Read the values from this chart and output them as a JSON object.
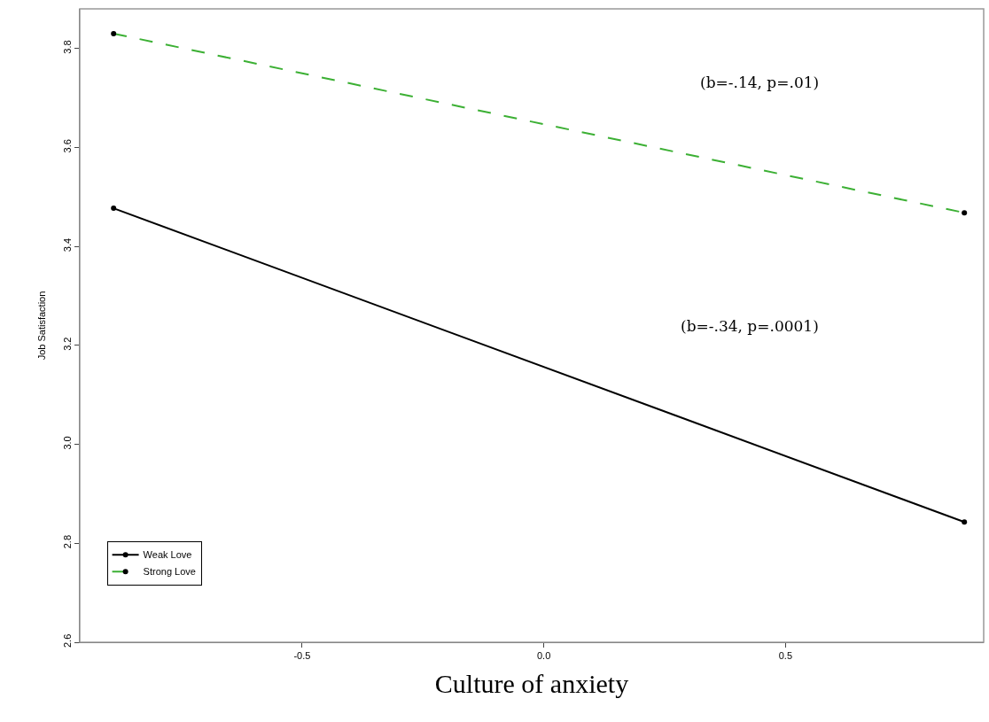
{
  "chart_data": {
    "type": "line",
    "xlabel": "Culture of anxiety",
    "ylabel": "Job Satisfaction",
    "x": [
      -0.89,
      0.87
    ],
    "series": [
      {
        "name": "Weak Love",
        "color": "#000000",
        "values": [
          3.477,
          2.843
        ],
        "line_style": "solid"
      },
      {
        "name": "Strong Love",
        "color": "#3cb034",
        "values": [
          3.83,
          3.468
        ],
        "line_style": "dashed"
      }
    ],
    "xlim": [
      -0.96,
      0.91
    ],
    "xticks": [
      {
        "value": -0.5,
        "label": "-0.5"
      },
      {
        "value": 0,
        "label": "0.0"
      },
      {
        "value": 0.5,
        "label": "0.5"
      }
    ],
    "ylim": [
      2.6,
      3.88
    ],
    "yticks": [
      {
        "value": 2.6,
        "label": "2.6"
      },
      {
        "value": 2.8,
        "label": "2.8"
      },
      {
        "value": 3.0,
        "label": "3.0"
      },
      {
        "value": 3.2,
        "label": "3.2"
      },
      {
        "value": 3.4,
        "label": "3.4"
      },
      {
        "value": 3.6,
        "label": "3.6"
      },
      {
        "value": 3.8,
        "label": "3.8"
      }
    ],
    "annotations": [
      "(b=-.14, p=.01)",
      "(b=-.34, p=.0001)"
    ],
    "marker": "circle",
    "legend": "bottom left"
  }
}
